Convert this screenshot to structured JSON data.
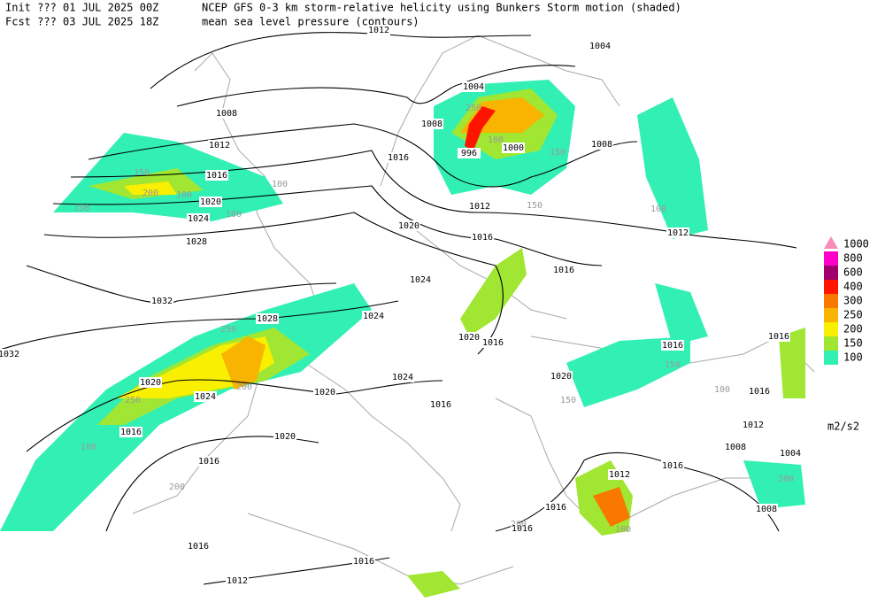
{
  "header": {
    "init": "Init  ??? 01 JUL 2025 00Z",
    "forecast": "Fcst ??? 03 JUL 2025 18Z",
    "title": "NCEP GFS 0-3 km storm-relative helicity using Bunkers Storm motion (shaded)",
    "subtitle": "mean sea level pressure (contours)"
  },
  "legend": {
    "unit": "m2/s2",
    "levels": [
      {
        "value": 1000,
        "color": "#f88cb8"
      },
      {
        "value": 800,
        "color": "#ff00c8"
      },
      {
        "value": 600,
        "color": "#a0006e"
      },
      {
        "value": 400,
        "color": "#ff1400"
      },
      {
        "value": 300,
        "color": "#f87800"
      },
      {
        "value": 250,
        "color": "#f8b400"
      },
      {
        "value": 200,
        "color": "#f8f000"
      },
      {
        "value": 150,
        "color": "#a0e632"
      },
      {
        "value": 100,
        "color": "#32f0b4"
      }
    ]
  },
  "contours": {
    "labels": [
      1012,
      1004,
      1008,
      1004,
      1008,
      1012,
      1016,
      1000,
      996,
      1016,
      1008,
      1020,
      1024,
      1012,
      1028,
      1020,
      1016,
      1012,
      1016,
      1024,
      1032,
      1028,
      1024,
      1020,
      1016,
      1016,
      1016,
      1032,
      1024,
      1020,
      1020,
      1020,
      1024,
      1016,
      1016,
      1012,
      1016,
      1020,
      1008,
      1004,
      1016,
      1012,
      1016,
      1016,
      1008,
      1016,
      1016,
      1016,
      1012
    ]
  },
  "shading": {
    "labels": [
      150,
      200,
      100,
      150,
      100,
      100,
      250,
      200,
      250,
      200,
      150,
      100,
      150,
      250,
      200,
      100,
      150,
      100,
      100,
      200,
      100,
      150
    ]
  }
}
